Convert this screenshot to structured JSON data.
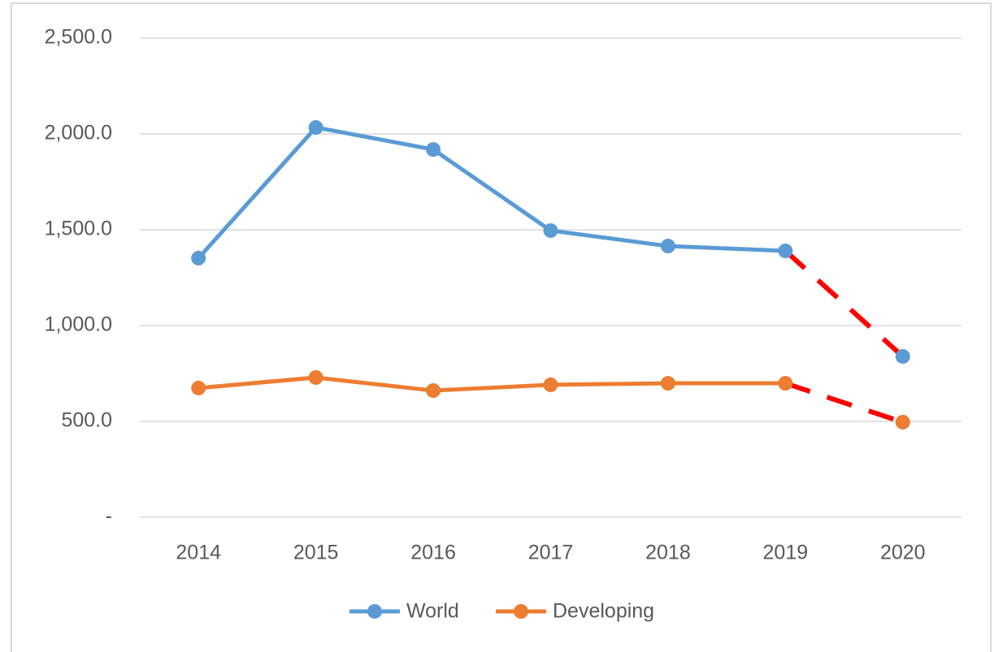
{
  "chart_data": {
    "type": "line",
    "categories": [
      "2014",
      "2015",
      "2016",
      "2017",
      "2018",
      "2019",
      "2020"
    ],
    "series": [
      {
        "name": "World",
        "color": "#5b9bd5",
        "values": [
          1352,
          2034,
          1919,
          1496,
          1415,
          1390,
          839
        ]
      },
      {
        "name": "Developing",
        "color": "#ed7d31",
        "values": [
          674,
          729,
          661,
          691,
          699,
          699,
          496
        ]
      }
    ],
    "projection_color": "#ff0000",
    "ylim": [
      0,
      2500
    ],
    "yticks": [
      {
        "value": 0,
        "label": "-"
      },
      {
        "value": 500,
        "label": "500.0"
      },
      {
        "value": 1000,
        "label": "1,000.0"
      },
      {
        "value": 1500,
        "label": "1,500.0"
      },
      {
        "value": 2000,
        "label": "2,000.0"
      },
      {
        "value": 2500,
        "label": "2,500.0"
      }
    ],
    "grid": true,
    "legend": "bottom"
  }
}
